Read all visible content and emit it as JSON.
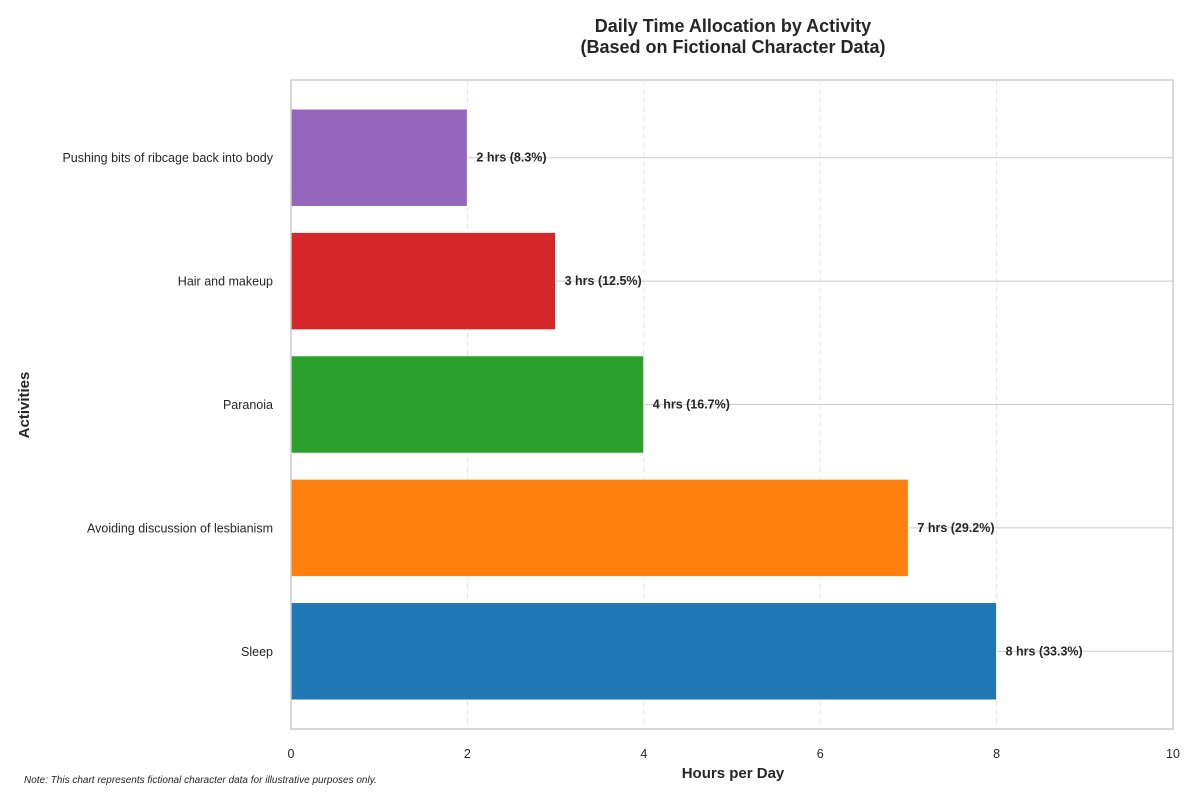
{
  "chart_data": {
    "type": "bar",
    "orientation": "horizontal",
    "title": "Daily Time Allocation by Activity",
    "subtitle": "(Based on Fictional Character Data)",
    "xlabel": "Hours per Day",
    "ylabel": "Activities",
    "xlim": [
      0,
      10
    ],
    "xticks": [
      "0",
      "2",
      "4",
      "6",
      "8",
      "10"
    ],
    "grid": true,
    "categories": [
      "Sleep",
      "Avoiding discussion of lesbianism",
      "Paranoia",
      "Hair and makeup",
      "Pushing bits of ribcage back into body"
    ],
    "values": [
      8,
      7,
      4,
      3,
      2
    ],
    "bar_labels": [
      "8 hrs (33.3%)",
      "7 hrs (29.2%)",
      "4 hrs (16.7%)",
      "3 hrs (12.5%)",
      "2 hrs (8.3%)"
    ],
    "colors": [
      "#1f77b4",
      "#ff7f0e",
      "#2ca02c",
      "#d62728",
      "#9467bd"
    ],
    "note": "Note: This chart represents fictional character data for illustrative purposes only."
  }
}
